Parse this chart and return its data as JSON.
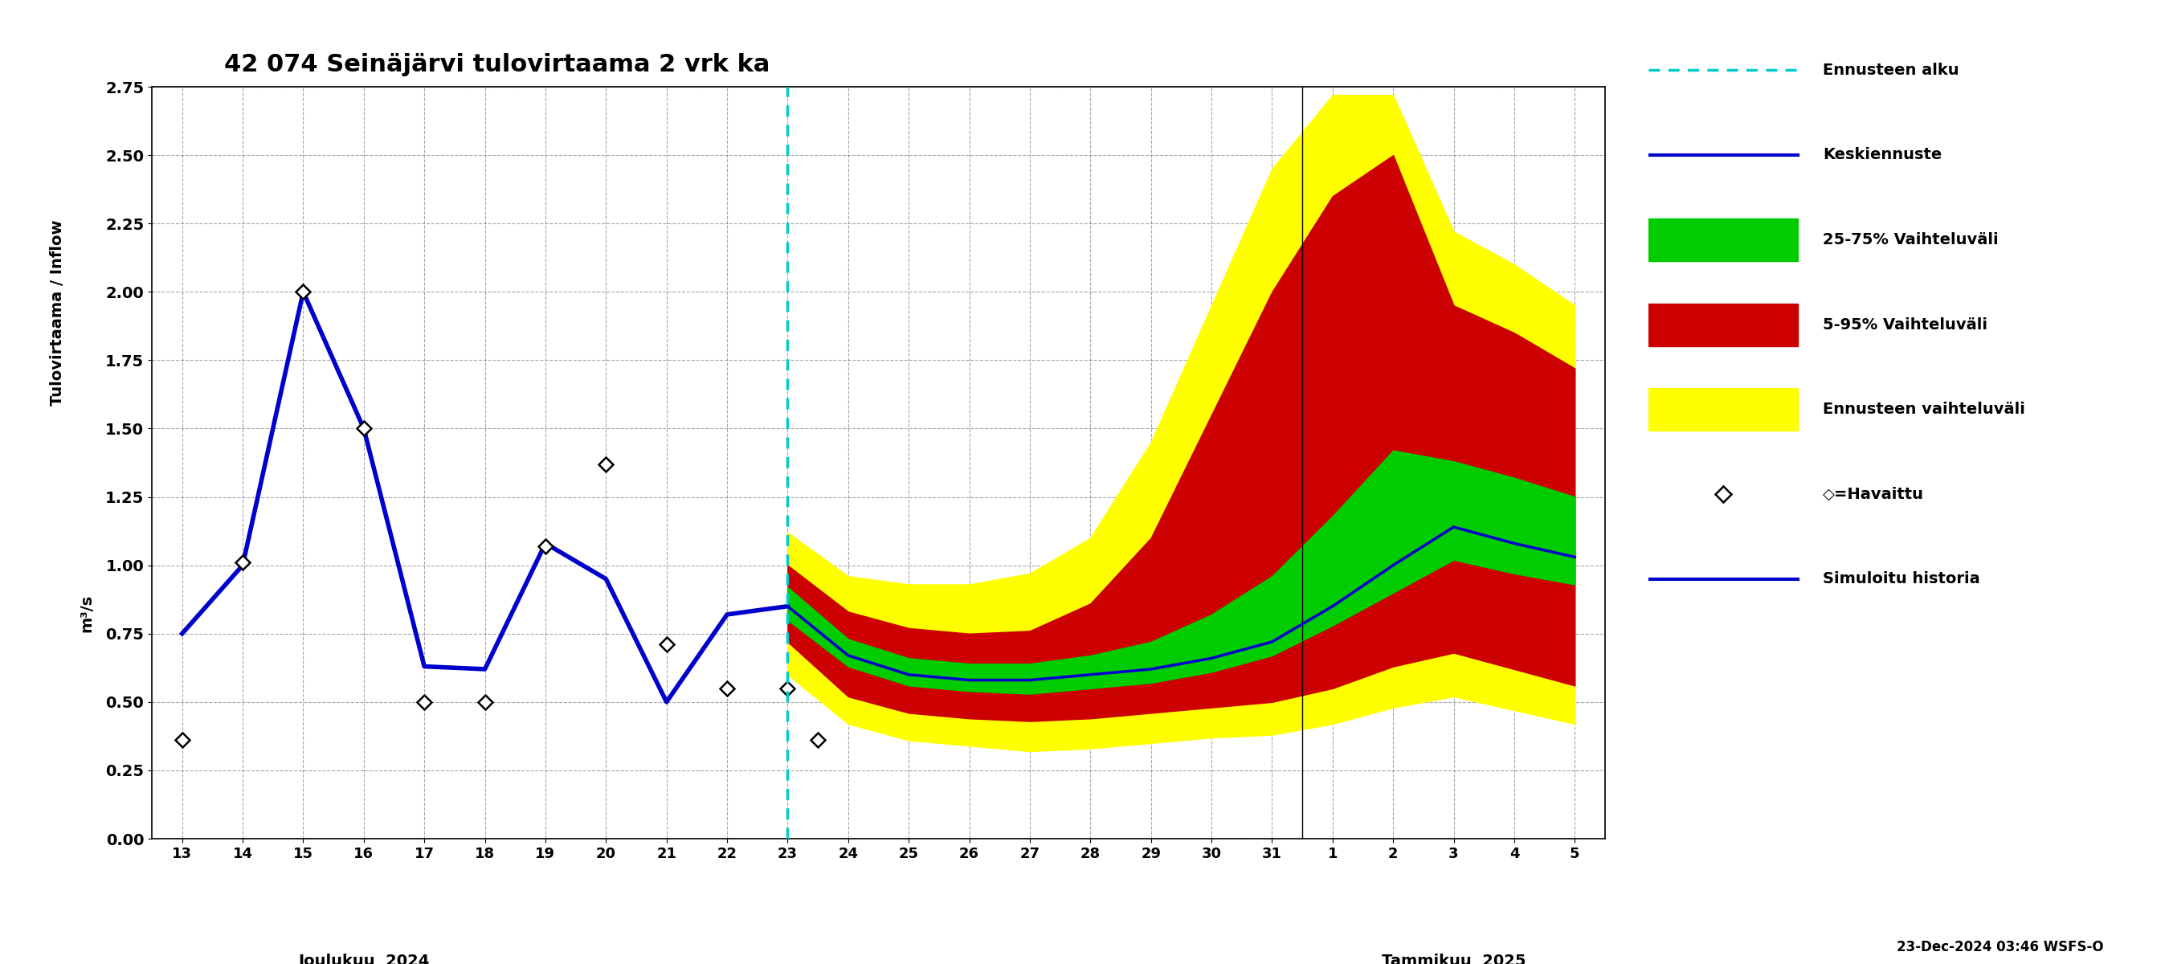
{
  "title": "42 074 Seinäjärvi tulovirtaama 2 vrk ka",
  "ylabel1": "Tulovirtaama / Inflow",
  "ylabel2": "m³/s",
  "ylim": [
    0.0,
    2.75
  ],
  "yticks": [
    0.0,
    0.25,
    0.5,
    0.75,
    1.0,
    1.25,
    1.5,
    1.75,
    2.0,
    2.25,
    2.5,
    2.75
  ],
  "footnote": "23-Dec-2024 03:46 WSFS-O",
  "x_labels_dec": [
    "13",
    "14",
    "15",
    "16",
    "17",
    "18",
    "19",
    "20",
    "21",
    "22",
    "23",
    "24",
    "25",
    "26",
    "27",
    "28",
    "29",
    "30",
    "31"
  ],
  "x_labels_jan": [
    "1",
    "2",
    "3",
    "4",
    "5"
  ],
  "sim_x": [
    0,
    1,
    2,
    3,
    4,
    5,
    6,
    7,
    8,
    9,
    10
  ],
  "sim_y": [
    0.75,
    1.0,
    2.0,
    1.5,
    0.63,
    0.62,
    1.08,
    0.95,
    0.5,
    0.82,
    0.85
  ],
  "obs_x": [
    0,
    1,
    2,
    3,
    4,
    5,
    6,
    7,
    8,
    9,
    10,
    10.5
  ],
  "obs_y": [
    0.36,
    1.01,
    2.0,
    1.5,
    0.5,
    0.5,
    1.07,
    1.37,
    0.71,
    0.55,
    0.55,
    0.36
  ],
  "fc_x": [
    10,
    11,
    12,
    13,
    14,
    15,
    16,
    17,
    18,
    19,
    20,
    21,
    22,
    23
  ],
  "fc_median": [
    0.85,
    0.67,
    0.6,
    0.58,
    0.58,
    0.6,
    0.62,
    0.66,
    0.72,
    0.85,
    1.0,
    1.14,
    1.08,
    1.03
  ],
  "fc_p25": [
    0.8,
    0.63,
    0.56,
    0.54,
    0.53,
    0.55,
    0.57,
    0.61,
    0.67,
    0.78,
    0.9,
    1.02,
    0.97,
    0.93
  ],
  "fc_p75": [
    0.92,
    0.73,
    0.66,
    0.64,
    0.64,
    0.67,
    0.72,
    0.82,
    0.96,
    1.18,
    1.42,
    1.38,
    1.32,
    1.25
  ],
  "fc_p05": [
    0.72,
    0.52,
    0.46,
    0.44,
    0.43,
    0.44,
    0.46,
    0.48,
    0.5,
    0.55,
    0.63,
    0.68,
    0.62,
    0.56
  ],
  "fc_p95": [
    1.0,
    0.83,
    0.77,
    0.75,
    0.76,
    0.86,
    1.1,
    1.55,
    2.0,
    2.35,
    2.5,
    1.95,
    1.85,
    1.72
  ],
  "fc_ylow": [
    0.6,
    0.42,
    0.36,
    0.34,
    0.32,
    0.33,
    0.35,
    0.37,
    0.38,
    0.42,
    0.48,
    0.52,
    0.47,
    0.42
  ],
  "fc_yhigh": [
    1.12,
    0.96,
    0.93,
    0.93,
    0.97,
    1.1,
    1.45,
    1.95,
    2.45,
    2.72,
    2.72,
    2.22,
    2.1,
    1.95
  ],
  "color_sim": "#0000cc",
  "color_median": "#0000cc",
  "color_25_75": "#00cc00",
  "color_5_95": "#cc0000",
  "color_ennuste": "#ffff00",
  "color_forecast_vline": "#00cccc",
  "color_obs_marker": "#000000"
}
